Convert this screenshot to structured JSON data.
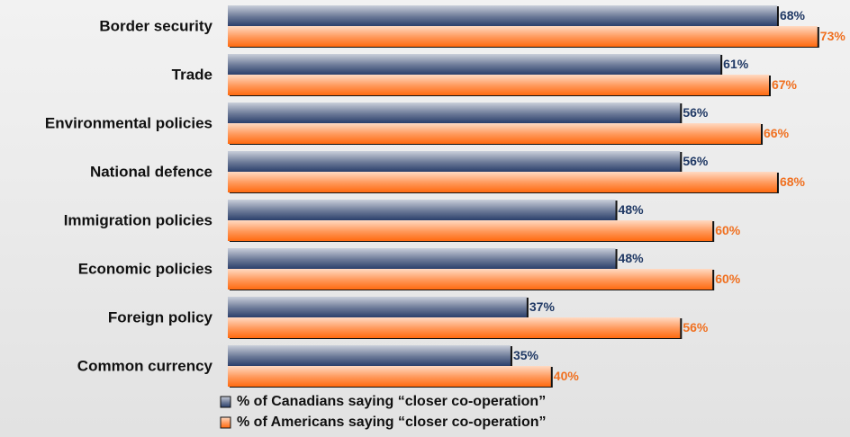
{
  "chart_data": {
    "type": "hbar",
    "categories": [
      "Border security",
      "Trade",
      "Environmental policies",
      "National defence",
      "Immigration policies",
      "Economic policies",
      "Foreign policy",
      "Common currency"
    ],
    "series": [
      {
        "name": "% of Canadians saying “closer co-operation”",
        "color": "#2b3f6b",
        "values": [
          68,
          61,
          56,
          56,
          48,
          48,
          37,
          35
        ],
        "value_labels": [
          "68%",
          "61%",
          "56%",
          "56%",
          "48%",
          "48%",
          "37%",
          "35%"
        ]
      },
      {
        "name": "% of Americans saying “closer co-operation”",
        "color": "#ff6a10",
        "values": [
          73,
          67,
          66,
          68,
          60,
          60,
          56,
          40
        ],
        "value_labels": [
          "73%",
          "67%",
          "66%",
          "68%",
          "60%",
          "60%",
          "56%",
          "40%"
        ]
      }
    ],
    "legend": "bottom"
  }
}
